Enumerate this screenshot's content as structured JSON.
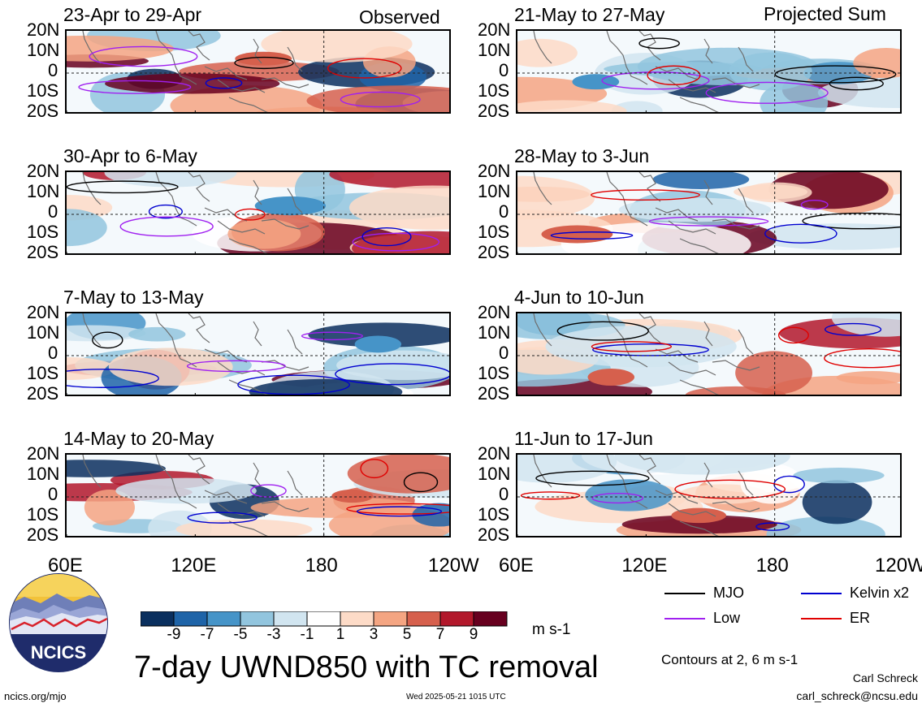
{
  "figure": {
    "main_title": "7-day UWND850 with TC removal",
    "observed_label": "Observed",
    "projected_label": "Projected Sum",
    "site_link": "ncics.org/mjo",
    "timestamp": "Wed 2025-05-21 1015 UTC",
    "author": "Carl Schreck",
    "email": "carl_schreck@ncsu.edu",
    "logo_text": "NCICS",
    "units": "m s-1",
    "contour_note": "Contours at 2, 6 m s-1"
  },
  "chart_data": {
    "type": "heatmap",
    "variable": "850-hPa zonal wind anomaly, 7-day mean",
    "units": "m s-1",
    "lat_labels": [
      "20N",
      "10N",
      "0",
      "10S",
      "20S"
    ],
    "lon_labels": [
      "60E",
      "120E",
      "180",
      "120W"
    ],
    "lat_range": [
      -20,
      20
    ],
    "lon_range": [
      60,
      240
    ],
    "colorbar": {
      "ticks": [
        "-9",
        "-7",
        "-5",
        "-3",
        "-1",
        "1",
        "3",
        "5",
        "7",
        "9"
      ],
      "colors": [
        "#0a2f5e",
        "#1f64a8",
        "#4694c8",
        "#92c5de",
        "#d1e5f0",
        "#ffffff",
        "#fddbc7",
        "#f4a582",
        "#d6604d",
        "#b2182b",
        "#67001f"
      ]
    },
    "contours": {
      "levels": [
        2,
        6
      ],
      "series": [
        {
          "name": "MJO",
          "color": "#000000"
        },
        {
          "name": "Kelvin x2",
          "color": "#0000d0"
        },
        {
          "name": "Low",
          "color": "#a020f0"
        },
        {
          "name": "ER",
          "color": "#e00000"
        }
      ]
    },
    "panels": [
      {
        "period": "23-Apr to 29-Apr",
        "group": "Observed"
      },
      {
        "period": "30-Apr to 6-May",
        "group": "Observed"
      },
      {
        "period": "7-May to 13-May",
        "group": "Observed"
      },
      {
        "period": "14-May to 20-May",
        "group": "Observed"
      },
      {
        "period": "21-May to 27-May",
        "group": "Projected Sum"
      },
      {
        "period": "28-May to 3-Jun",
        "group": "Projected Sum"
      },
      {
        "period": "4-Jun to 10-Jun",
        "group": "Projected Sum"
      },
      {
        "period": "11-Jun to 17-Jun",
        "group": "Projected Sum"
      }
    ]
  }
}
